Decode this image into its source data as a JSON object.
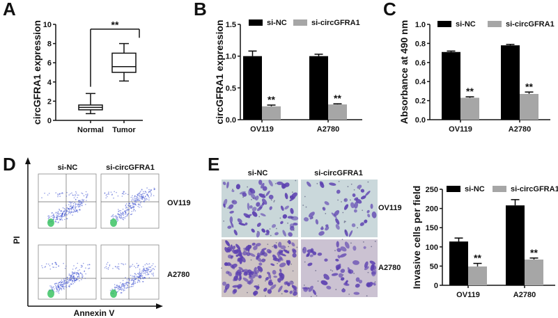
{
  "colors": {
    "si_nc": "#000000",
    "si_circ": "#a6a6a6",
    "axis": "#111111",
    "flow_low": "#3a4fd0",
    "flow_high": "#2fbf5a",
    "stain": "#5b3fb0"
  },
  "panels": {
    "A": {
      "letter": "A"
    },
    "B": {
      "letter": "B"
    },
    "C": {
      "letter": "C"
    },
    "D": {
      "letter": "D"
    },
    "E": {
      "letter": "E"
    }
  },
  "chart_data": [
    {
      "id": "A",
      "type": "box",
      "ylabel": "circGFRA1 expression",
      "categories": [
        "Normal",
        "Tumor"
      ],
      "ylim": [
        0,
        10
      ],
      "yticks": [
        "0",
        "2",
        "4",
        "6",
        "8",
        "10"
      ],
      "boxes": [
        {
          "min": 0.7,
          "q1": 1.1,
          "median": 1.35,
          "q3": 1.6,
          "max": 2.8
        },
        {
          "min": 4.1,
          "q1": 5.0,
          "median": 5.6,
          "q3": 7.0,
          "max": 8.0
        }
      ],
      "annotation": "**"
    },
    {
      "id": "B",
      "type": "bar",
      "ylabel": "circGFRA1 expression",
      "categories": [
        "OV119",
        "A2780"
      ],
      "ylim": [
        0,
        1.5
      ],
      "yticks": [
        "0.0",
        "0.5",
        "1.0",
        "1.5"
      ],
      "series": [
        {
          "name": "si-NC",
          "values": [
            1.0,
            1.0
          ],
          "errors": [
            0.08,
            0.03
          ]
        },
        {
          "name": "si-circGFRA1",
          "values": [
            0.21,
            0.24
          ],
          "errors": [
            0.02,
            0.01
          ],
          "annotations": [
            "**",
            "**"
          ]
        }
      ],
      "legend": "top"
    },
    {
      "id": "C",
      "type": "bar",
      "ylabel": "Absorbance at 490 nm",
      "categories": [
        "OV119",
        "A2780"
      ],
      "ylim": [
        0,
        1.0
      ],
      "yticks": [
        "0.0",
        "0.2",
        "0.4",
        "0.6",
        "0.8",
        "1.0"
      ],
      "series": [
        {
          "name": "si-NC",
          "values": [
            0.71,
            0.78
          ],
          "errors": [
            0.01,
            0.01
          ]
        },
        {
          "name": "si-circGFRA1",
          "values": [
            0.23,
            0.27
          ],
          "errors": [
            0.01,
            0.02
          ],
          "annotations": [
            "**",
            "**"
          ]
        }
      ],
      "legend": "top"
    },
    {
      "id": "D",
      "type": "scatter",
      "xlabel": "Annexin V",
      "ylabel": "PI",
      "columns": [
        "si-NC",
        "si-circGFRA1"
      ],
      "rows": [
        "OV119",
        "A2780"
      ]
    },
    {
      "id": "E",
      "type": "bar",
      "ylabel": "Invasive cells per field",
      "categories": [
        "OV119",
        "A2780"
      ],
      "ylim": [
        0,
        250
      ],
      "yticks": [
        "0",
        "50",
        "100",
        "150",
        "200",
        "250"
      ],
      "series": [
        {
          "name": "si-NC",
          "values": [
            114,
            208
          ],
          "errors": [
            9,
            15
          ]
        },
        {
          "name": "si-circGFRA1",
          "values": [
            49,
            67
          ],
          "errors": [
            8,
            4
          ],
          "annotations": [
            "**",
            "**"
          ]
        }
      ],
      "legend": "top",
      "image_columns": [
        "si-NC",
        "si-circGFRA1"
      ],
      "image_rows": [
        "OV119",
        "A2780"
      ]
    }
  ]
}
